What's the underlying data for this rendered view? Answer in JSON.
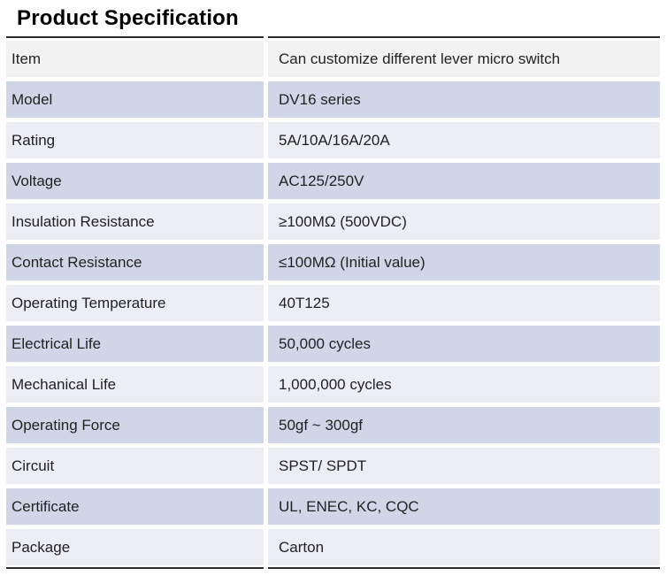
{
  "page": {
    "title": "Product Specification"
  },
  "table": {
    "rows": [
      {
        "label": "Item",
        "value": "Can customize different lever micro switch"
      },
      {
        "label": "Model",
        "value": "DV16 series"
      },
      {
        "label": "Rating",
        "value": "5A/10A/16A/20A"
      },
      {
        "label": "Voltage",
        "value": "AC125/250V"
      },
      {
        "label": "Insulation Resistance",
        "value": "≥100MΩ (500VDC)"
      },
      {
        "label": "Contact Resistance",
        "value": "≤100MΩ (Initial value)"
      },
      {
        "label": "Operating Temperature",
        "value": "40T125"
      },
      {
        "label": "Electrical Life",
        "value": "50,000 cycles"
      },
      {
        "label": "Mechanical Life",
        "value": "1,000,000 cycles"
      },
      {
        "label": "Operating Force",
        "value": "50gf ~ 300gf"
      },
      {
        "label": "Circuit",
        "value": "SPST/ SPDT"
      },
      {
        "label": "Certificate",
        "value": "UL, ENEC, KC, CQC"
      },
      {
        "label": "Package",
        "value": "Carton"
      }
    ],
    "colors": {
      "title_text": "#000000",
      "row_text": "#222222",
      "first_row_bg": "#f2f2f2",
      "alt_dark_bg": "#d1d5e8",
      "alt_light_bg": "#ecedf5",
      "rule_color": "#2b2b2b"
    }
  }
}
